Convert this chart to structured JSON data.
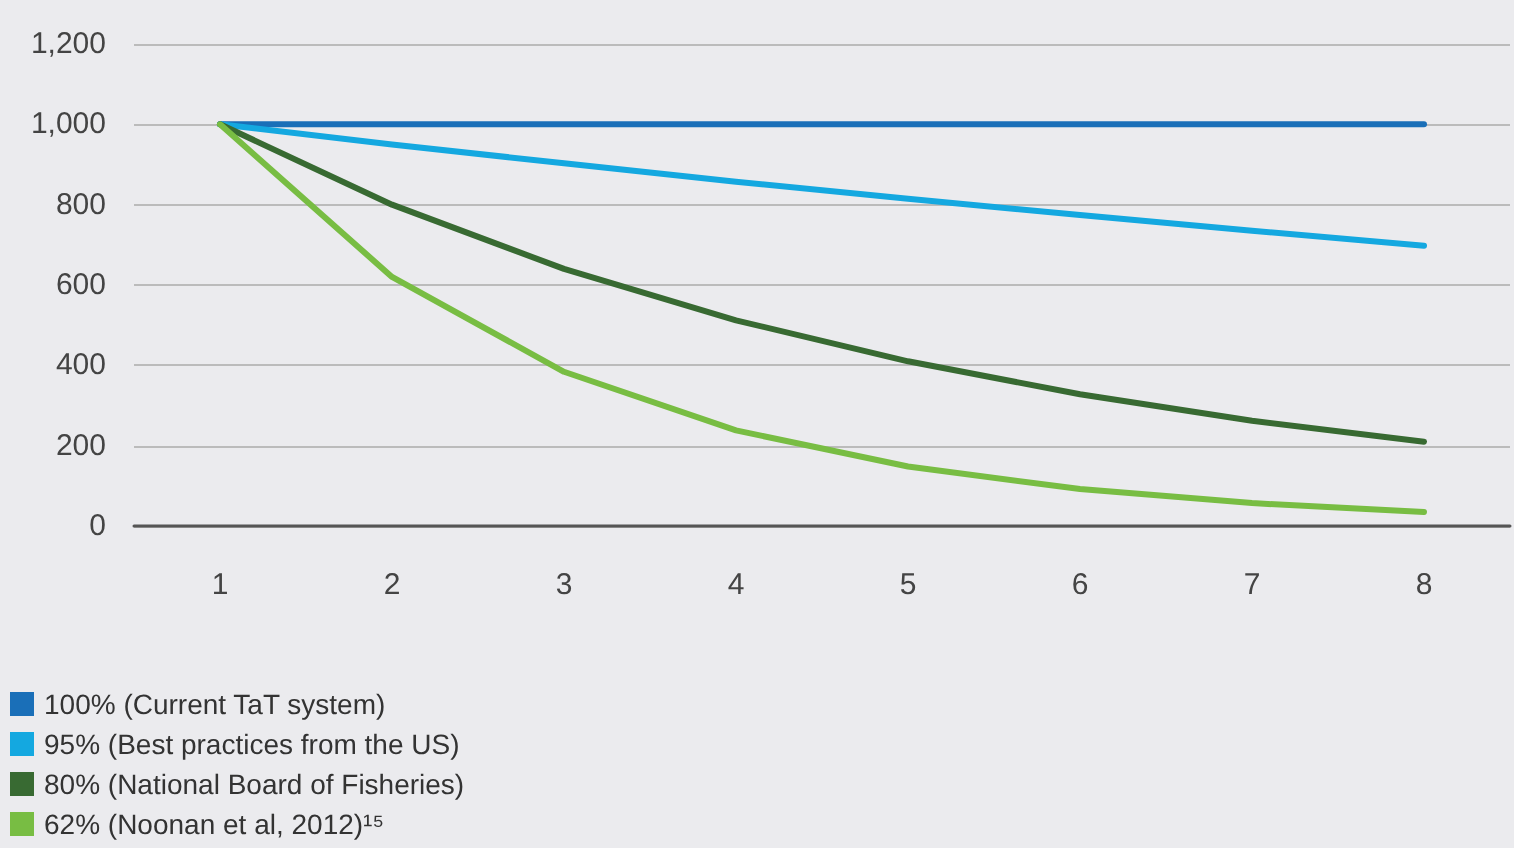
{
  "chart_data": {
    "type": "line",
    "categories": [
      "1",
      "2",
      "3",
      "4",
      "5",
      "6",
      "7",
      "8"
    ],
    "series": [
      {
        "name": "100% (Current TaT system)",
        "color": "#1a6fb8",
        "values": [
          1000,
          1000,
          1000,
          1000,
          1000,
          1000,
          1000,
          1000
        ]
      },
      {
        "name": "95% (Best practices from the US)",
        "color": "#14a8e0",
        "values": [
          1000,
          950,
          903,
          857,
          815,
          774,
          735,
          698
        ]
      },
      {
        "name": "80% (National Board of Fisheries)",
        "color": "#386a32",
        "values": [
          1000,
          800,
          640,
          512,
          410,
          328,
          262,
          210
        ]
      },
      {
        "name": "62% (Noonan et al, 2012)¹⁵",
        "color": "#78bd43",
        "values": [
          1000,
          620,
          384,
          238,
          148,
          92,
          57,
          35
        ]
      }
    ],
    "ylim": [
      0,
      1200
    ],
    "yticks": [
      0,
      200,
      400,
      600,
      800,
      {
        "value": 1000,
        "label": "1,000"
      },
      {
        "value": 1200,
        "label": "1,200"
      }
    ],
    "grid": "y",
    "legend": "bottom left",
    "marker": "none",
    "line_style": "solid"
  }
}
